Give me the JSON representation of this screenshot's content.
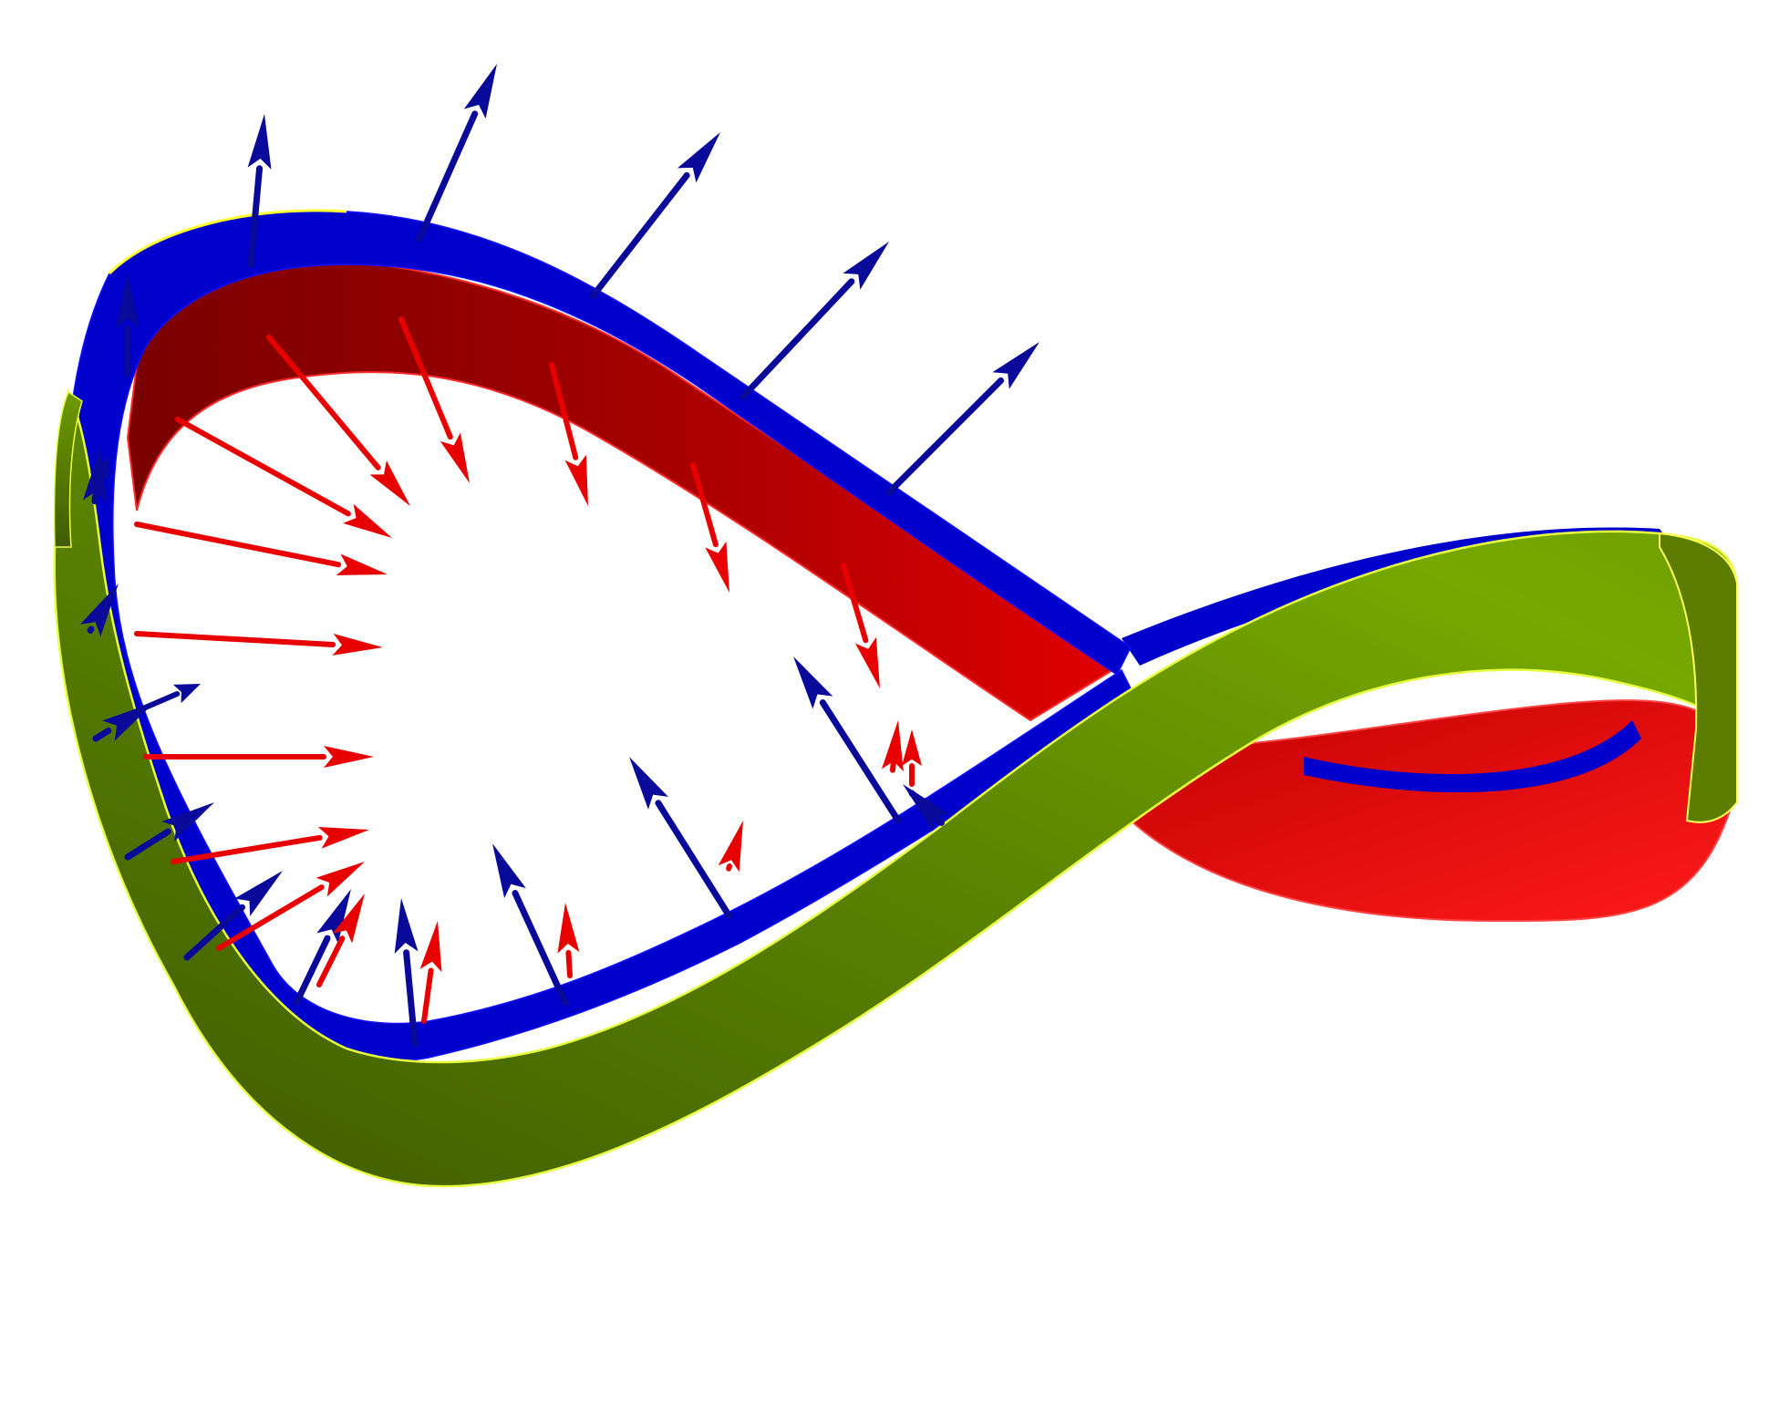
{
  "figure": {
    "subject": "mobius-strip-with-normal-vectors",
    "background": "#ffffff"
  },
  "colors": {
    "side_a_face": "#0000cc",
    "side_a_edge": "#0000aa",
    "side_b_face_dark": "#8b0000",
    "side_b_face_light": "#e00000",
    "outer_band_dark": "#4a6a00",
    "outer_band_light": "#7aa800",
    "outline": "#ffff33",
    "blue_arrow": "#0a0a9a",
    "red_arrow": "#e80000"
  },
  "vectors": {
    "outward_normals": {
      "color_key": "blue_arrow",
      "count": 19
    },
    "inward_normals": {
      "color_key": "red_arrow",
      "count": 17
    }
  }
}
